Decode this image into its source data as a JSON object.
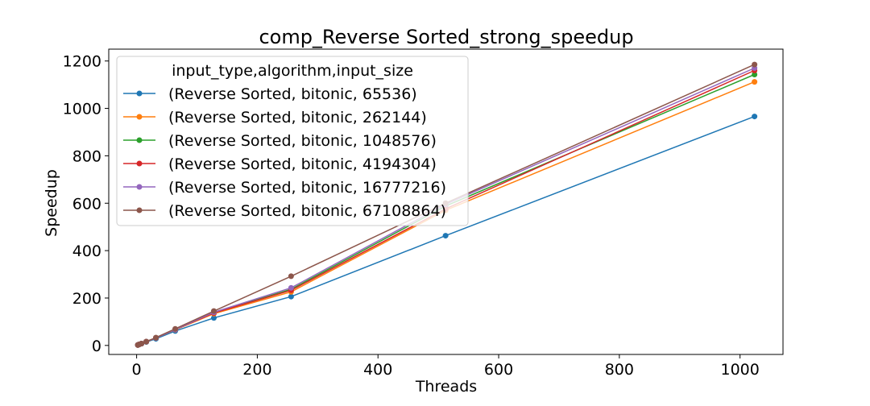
{
  "chart_data": {
    "type": "line",
    "title": "comp_Reverse Sorted_strong_speedup",
    "xlabel": "Threads",
    "ylabel": "Speedup",
    "xlim": [
      -46.2,
      1071.2
    ],
    "ylim": [
      -38,
      1250
    ],
    "xticks": [
      0,
      200,
      400,
      600,
      800,
      1000
    ],
    "yticks": [
      0,
      200,
      400,
      600,
      800,
      1000,
      1200
    ],
    "grid": false,
    "legend": {
      "title": "input_type,algorithm,input_size",
      "placement": "top-left"
    },
    "x": [
      2,
      4,
      8,
      16,
      32,
      64,
      128,
      256,
      512,
      1024
    ],
    "series": [
      {
        "name": "(Reverse Sorted, bitonic, 65536)",
        "color": "#1f77b4",
        "values": [
          1.9,
          3.8,
          7.5,
          14.5,
          28,
          61,
          116,
          206,
          463,
          966
        ]
      },
      {
        "name": "(Reverse Sorted, bitonic, 262144)",
        "color": "#ff7f0e",
        "values": [
          2,
          4,
          8,
          16,
          32,
          66,
          134,
          226,
          570,
          1112
        ]
      },
      {
        "name": "(Reverse Sorted, bitonic, 1048576)",
        "color": "#2ca02c",
        "values": [
          2,
          4,
          8,
          16,
          32,
          67,
          138,
          237,
          588,
          1143
        ]
      },
      {
        "name": "(Reverse Sorted, bitonic, 4194304)",
        "color": "#d62728",
        "values": [
          2,
          4,
          8,
          16,
          32,
          67,
          137,
          233,
          576,
          1160
        ]
      },
      {
        "name": "(Reverse Sorted, bitonic, 16777216)",
        "color": "#9467bd",
        "values": [
          2,
          4,
          8,
          16,
          32,
          67,
          140,
          243,
          595,
          1170
        ]
      },
      {
        "name": "(Reverse Sorted, bitonic, 67108864)",
        "color": "#8c564b",
        "values": [
          2,
          4,
          8,
          16,
          33,
          70,
          145,
          292,
          600,
          1185
        ]
      }
    ]
  }
}
